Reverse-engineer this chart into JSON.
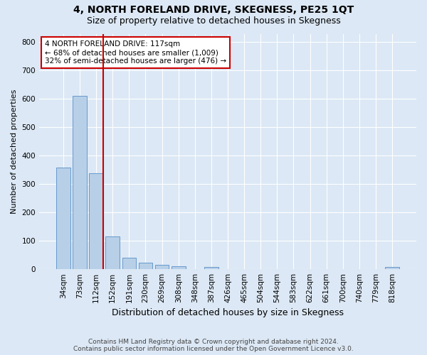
{
  "title": "4, NORTH FORELAND DRIVE, SKEGNESS, PE25 1QT",
  "subtitle": "Size of property relative to detached houses in Skegness",
  "xlabel": "Distribution of detached houses by size in Skegness",
  "ylabel": "Number of detached properties",
  "footer": "Contains HM Land Registry data © Crown copyright and database right 2024.\nContains public sector information licensed under the Open Government Licence v3.0.",
  "bar_labels": [
    "34sqm",
    "73sqm",
    "112sqm",
    "152sqm",
    "191sqm",
    "230sqm",
    "269sqm",
    "308sqm",
    "348sqm",
    "387sqm",
    "426sqm",
    "465sqm",
    "504sqm",
    "544sqm",
    "583sqm",
    "622sqm",
    "661sqm",
    "700sqm",
    "740sqm",
    "779sqm",
    "818sqm"
  ],
  "bar_values": [
    358,
    610,
    338,
    115,
    40,
    22,
    15,
    10,
    0,
    8,
    0,
    0,
    0,
    0,
    0,
    0,
    0,
    0,
    0,
    0,
    7
  ],
  "bar_color": "#b8cfe8",
  "bar_edge_color": "#6699cc",
  "property_bar_index": 2,
  "annotation_line1": "4 NORTH FORELAND DRIVE: 117sqm",
  "annotation_line2": "← 68% of detached houses are smaller (1,009)",
  "annotation_line3": "32% of semi-detached houses are larger (476) →",
  "annotation_box_color": "#ffffff",
  "annotation_border_color": "#cc0000",
  "property_line_color": "#cc0000",
  "ylim": [
    0,
    830
  ],
  "yticks": [
    0,
    100,
    200,
    300,
    400,
    500,
    600,
    700,
    800
  ],
  "bg_color": "#dce8f5",
  "plot_bg_color": "#dce8f5",
  "grid_color": "#ffffff",
  "title_fontsize": 10,
  "subtitle_fontsize": 9,
  "ylabel_fontsize": 8,
  "xlabel_fontsize": 9,
  "tick_fontsize": 7.5,
  "annot_fontsize": 7.5,
  "footer_fontsize": 6.5
}
